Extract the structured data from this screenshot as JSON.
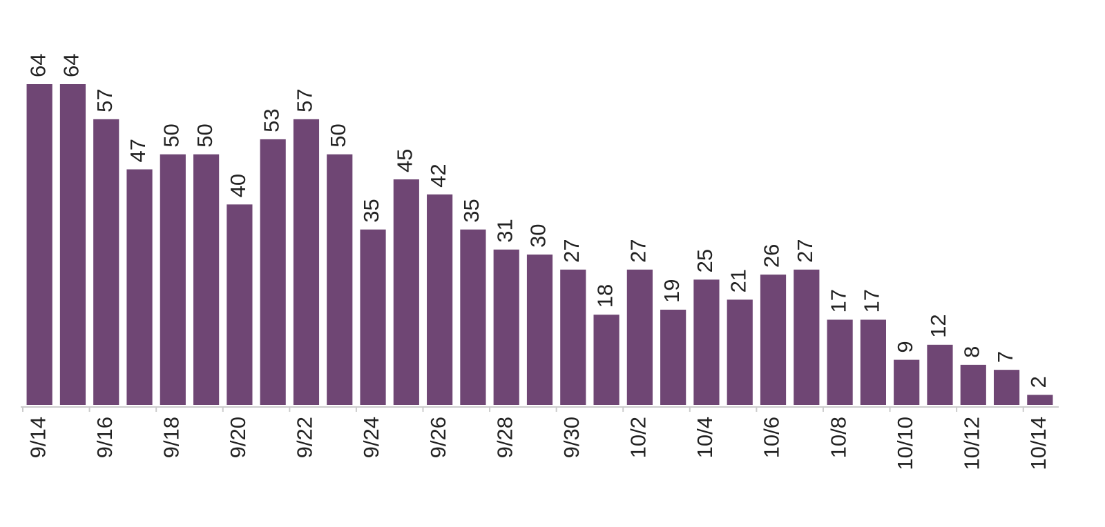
{
  "chart_data": {
    "type": "bar",
    "categories": [
      "9/14",
      null,
      "9/16",
      null,
      "9/18",
      null,
      "9/20",
      null,
      "9/22",
      null,
      "9/24",
      null,
      "9/26",
      null,
      "9/28",
      null,
      "9/30",
      null,
      "10/2",
      null,
      "10/4",
      null,
      "10/6",
      null,
      "10/8",
      null,
      "10/10",
      null,
      "10/12",
      null,
      "10/14"
    ],
    "values": [
      64,
      64,
      57,
      47,
      50,
      50,
      40,
      53,
      57,
      50,
      35,
      45,
      42,
      35,
      31,
      30,
      27,
      18,
      27,
      19,
      25,
      21,
      26,
      27,
      17,
      17,
      9,
      12,
      8,
      7,
      2
    ],
    "color": "#6f4674"
  }
}
